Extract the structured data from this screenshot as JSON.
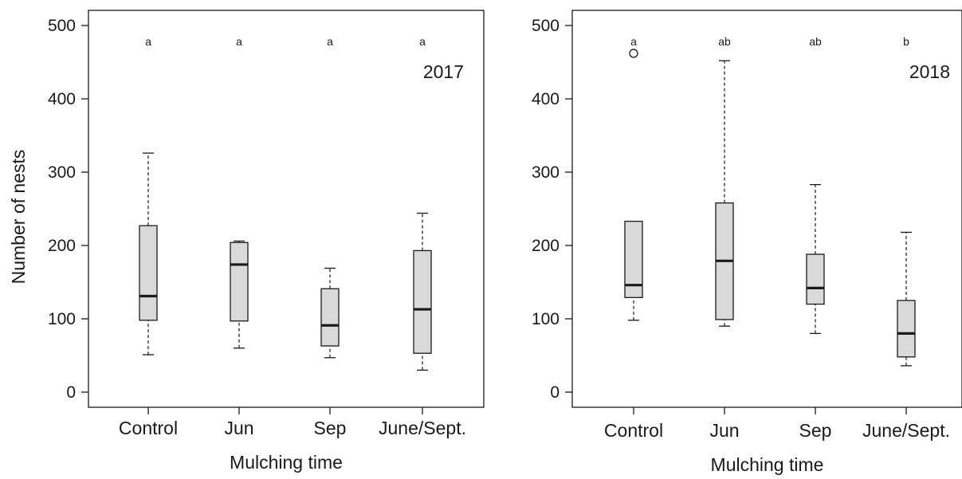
{
  "chart_data": [
    {
      "type": "box",
      "year_label": "2017",
      "xlabel": "Mulching time",
      "ylabel": "Number of nests",
      "ylim": [
        0,
        500
      ],
      "yticks": [
        0,
        100,
        200,
        300,
        400,
        500
      ],
      "categories": [
        "Control",
        "Jun",
        "Sep",
        "June/Sept."
      ],
      "letters": [
        "a",
        "a",
        "a",
        "a"
      ],
      "boxes": [
        {
          "category": "Control",
          "min": 51,
          "q1": 98,
          "median": 131,
          "q3": 227,
          "max": 326,
          "outliers": []
        },
        {
          "category": "Jun",
          "min": 60,
          "q1": 97,
          "median": 174,
          "q3": 204,
          "max": 206,
          "outliers": []
        },
        {
          "category": "Sep",
          "min": 47,
          "q1": 63,
          "median": 91,
          "q3": 141,
          "max": 169,
          "outliers": []
        },
        {
          "category": "June/Sept.",
          "min": 30,
          "q1": 53,
          "median": 113,
          "q3": 193,
          "max": 244,
          "outliers": []
        }
      ],
      "box_fill": "#d9d9d9",
      "line_color": "#1a1a1a"
    },
    {
      "type": "box",
      "year_label": "2018",
      "xlabel": "Mulching time",
      "ylabel": "",
      "ylim": [
        0,
        500
      ],
      "yticks": [
        0,
        100,
        200,
        300,
        400,
        500
      ],
      "categories": [
        "Control",
        "Jun",
        "Sep",
        "June/Sept."
      ],
      "letters": [
        "a",
        "ab",
        "ab",
        "b"
      ],
      "boxes": [
        {
          "category": "Control",
          "min": 98,
          "q1": 129,
          "median": 146,
          "q3": 233,
          "max": 233,
          "outliers": [
            462
          ]
        },
        {
          "category": "Jun",
          "min": 90,
          "q1": 99,
          "median": 179,
          "q3": 258,
          "max": 452,
          "outliers": []
        },
        {
          "category": "Sep",
          "min": 80,
          "q1": 120,
          "median": 142,
          "q3": 188,
          "max": 283,
          "outliers": []
        },
        {
          "category": "June/Sept.",
          "min": 36,
          "q1": 48,
          "median": 80,
          "q3": 125,
          "max": 218,
          "outliers": []
        }
      ],
      "box_fill": "#d9d9d9",
      "line_color": "#1a1a1a"
    }
  ]
}
